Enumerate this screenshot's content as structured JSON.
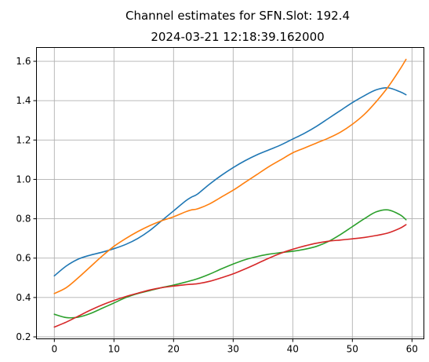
{
  "chart_data": {
    "type": "line",
    "title": "Channel estimates for SFN.Slot: 192.4",
    "subtitle": "2024-03-21 12:18:39.162000",
    "xlabel": "",
    "ylabel": "",
    "xlim": [
      -3,
      62
    ],
    "ylim": [
      0.19,
      1.67
    ],
    "xticks": [
      0,
      10,
      20,
      30,
      40,
      50,
      60
    ],
    "xtick_labels": [
      "0",
      "10",
      "20",
      "30",
      "40",
      "50",
      "60"
    ],
    "yticks": [
      0.2,
      0.4,
      0.6,
      0.8,
      1.0,
      1.2,
      1.4,
      1.6
    ],
    "ytick_labels": [
      "0.2",
      "0.4",
      "0.6",
      "0.8",
      "1.0",
      "1.2",
      "1.4",
      "1.6"
    ],
    "grid": true,
    "series": [
      {
        "color": "#1f77b4",
        "x": [
          0,
          2,
          4,
          6,
          8,
          10,
          12,
          14,
          16,
          18,
          20,
          22,
          23,
          24,
          26,
          28,
          30,
          32,
          34,
          36,
          38,
          40,
          42,
          44,
          46,
          48,
          50,
          52,
          54,
          56,
          58,
          59
        ],
        "y": [
          0.51,
          0.56,
          0.595,
          0.615,
          0.63,
          0.648,
          0.67,
          0.7,
          0.74,
          0.79,
          0.84,
          0.89,
          0.91,
          0.925,
          0.975,
          1.02,
          1.06,
          1.095,
          1.125,
          1.15,
          1.175,
          1.205,
          1.235,
          1.27,
          1.31,
          1.35,
          1.39,
          1.425,
          1.455,
          1.465,
          1.445,
          1.43
        ]
      },
      {
        "color": "#ff7f0e",
        "x": [
          0,
          2,
          4,
          6,
          8,
          10,
          12,
          14,
          16,
          18,
          20,
          22,
          23,
          24,
          26,
          28,
          30,
          32,
          34,
          36,
          38,
          40,
          42,
          44,
          46,
          48,
          50,
          52,
          54,
          56,
          58,
          59
        ],
        "y": [
          0.42,
          0.45,
          0.5,
          0.555,
          0.61,
          0.66,
          0.7,
          0.735,
          0.765,
          0.79,
          0.81,
          0.835,
          0.845,
          0.85,
          0.875,
          0.91,
          0.945,
          0.985,
          1.025,
          1.065,
          1.1,
          1.135,
          1.16,
          1.185,
          1.21,
          1.24,
          1.28,
          1.33,
          1.395,
          1.47,
          1.56,
          1.61
        ]
      },
      {
        "color": "#2ca02c",
        "x": [
          0,
          2,
          4,
          6,
          8,
          10,
          12,
          14,
          16,
          18,
          20,
          22,
          24,
          26,
          28,
          30,
          32,
          34,
          36,
          38,
          40,
          42,
          44,
          46,
          48,
          50,
          52,
          54,
          56,
          58,
          59
        ],
        "y": [
          0.315,
          0.298,
          0.3,
          0.318,
          0.345,
          0.372,
          0.4,
          0.42,
          0.435,
          0.45,
          0.463,
          0.478,
          0.495,
          0.518,
          0.545,
          0.57,
          0.592,
          0.608,
          0.62,
          0.628,
          0.635,
          0.645,
          0.66,
          0.685,
          0.72,
          0.76,
          0.8,
          0.835,
          0.845,
          0.82,
          0.795
        ]
      },
      {
        "color": "#d62728",
        "x": [
          0,
          2,
          4,
          6,
          8,
          10,
          12,
          14,
          16,
          18,
          20,
          22,
          24,
          26,
          28,
          30,
          32,
          34,
          36,
          38,
          40,
          42,
          44,
          46,
          48,
          50,
          52,
          54,
          56,
          58,
          59
        ],
        "y": [
          0.25,
          0.275,
          0.305,
          0.335,
          0.362,
          0.385,
          0.405,
          0.422,
          0.438,
          0.45,
          0.458,
          0.465,
          0.47,
          0.482,
          0.5,
          0.52,
          0.545,
          0.572,
          0.6,
          0.625,
          0.645,
          0.662,
          0.676,
          0.686,
          0.692,
          0.698,
          0.705,
          0.715,
          0.728,
          0.752,
          0.77
        ]
      }
    ]
  }
}
